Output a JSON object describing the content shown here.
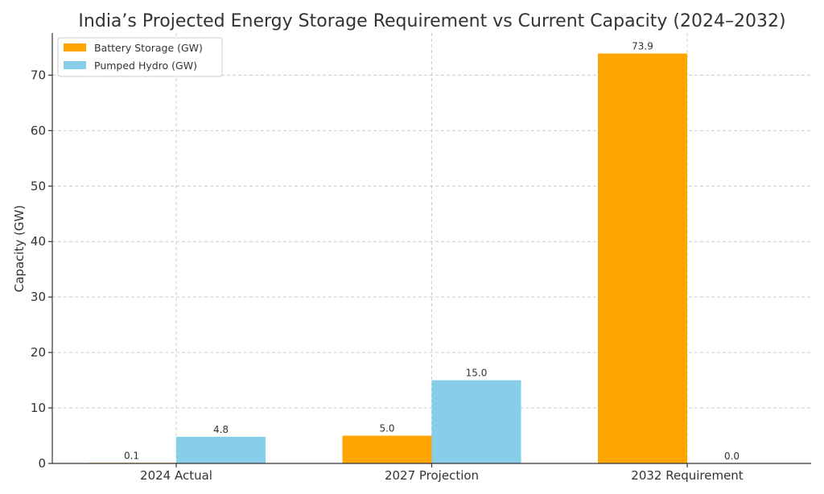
{
  "chart_data": {
    "type": "bar",
    "title": "India’s Projected Energy Storage Requirement vs Current Capacity (2024–2032)",
    "xlabel": "",
    "ylabel": "Capacity (GW)",
    "categories": [
      "2024 Actual",
      "2027 Projection",
      "2032 Requirement"
    ],
    "series": [
      {
        "name": "Battery Storage (GW)",
        "values": [
          0.1,
          5.0,
          73.9
        ],
        "labels": [
          "0.1",
          "5.0",
          "73.9"
        ],
        "color": "#FFA500"
      },
      {
        "name": "Pumped Hydro (GW)",
        "values": [
          4.8,
          15.0,
          0.0
        ],
        "labels": [
          "4.8",
          "15.0",
          "0.0"
        ],
        "color": "#87CEEB"
      }
    ],
    "ylim": [
      0,
      77.6
    ],
    "yticks": [
      0,
      10,
      20,
      30,
      40,
      50,
      60,
      70
    ],
    "grid": true,
    "legend_position": "top-left"
  }
}
